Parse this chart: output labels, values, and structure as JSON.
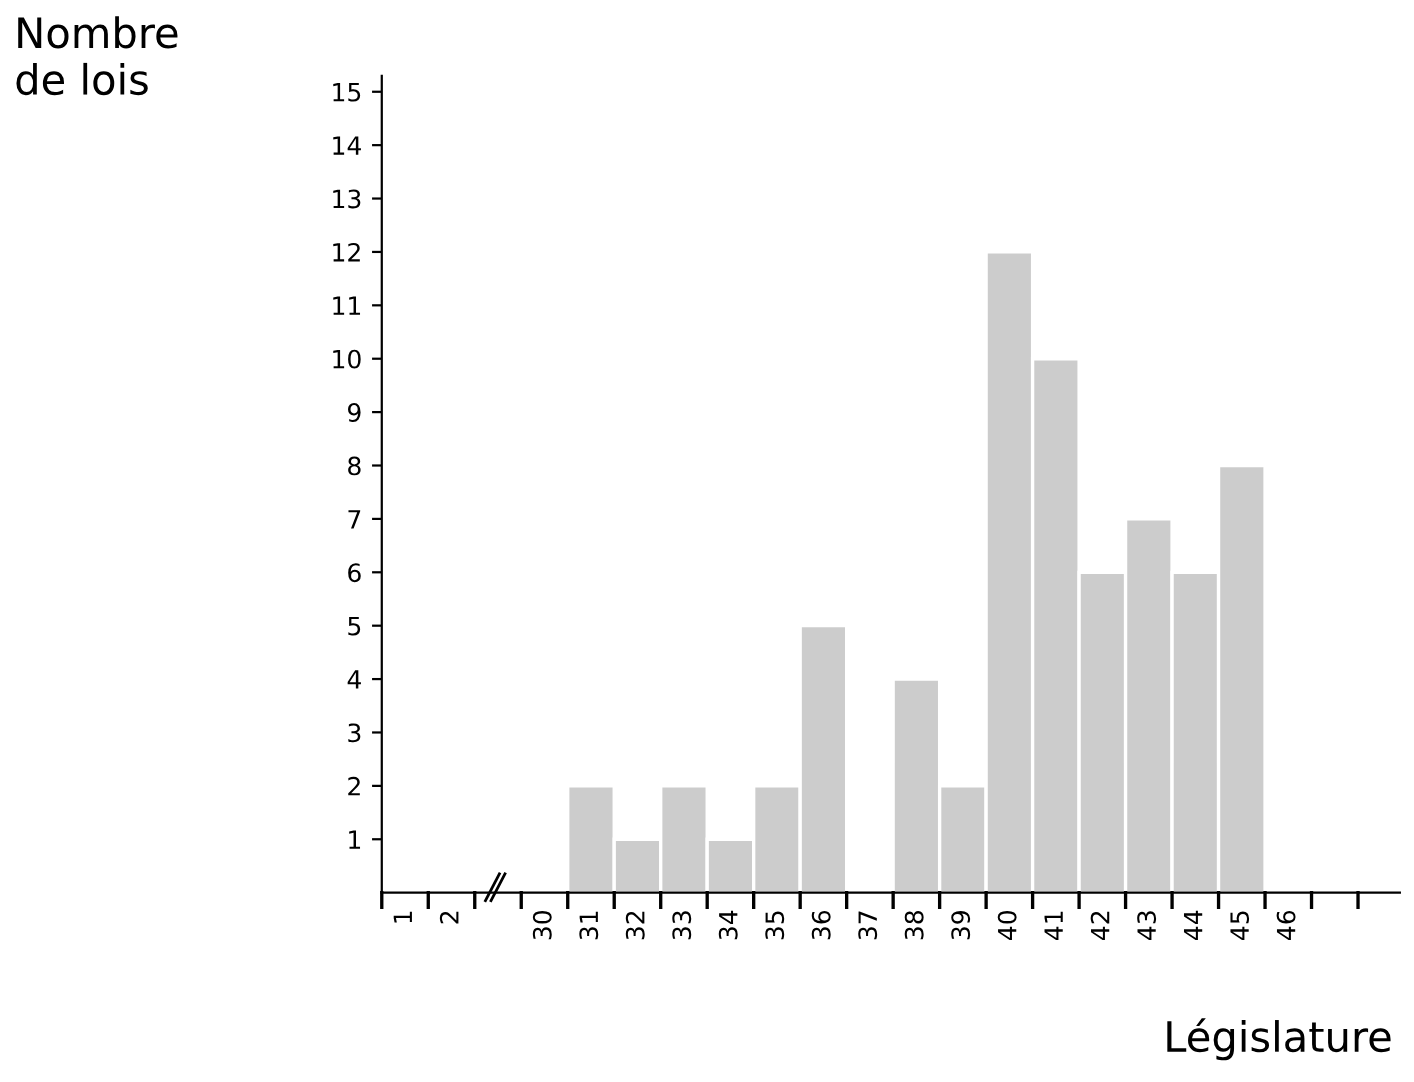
{
  "chart_data": {
    "type": "bar",
    "ylabel": "Nombre\nde lois",
    "xlabel": "Législature",
    "categories": [
      "1",
      "2",
      null,
      "30",
      "31",
      "32",
      "33",
      "34",
      "35",
      "36",
      "37",
      "38",
      "39",
      "40",
      "41",
      "42",
      "43",
      "44",
      "45",
      "46",
      null
    ],
    "values": [
      0,
      0,
      null,
      0,
      2,
      1,
      2,
      1,
      2,
      5,
      0,
      4,
      2,
      12,
      10,
      6,
      7,
      6,
      8,
      0,
      0
    ],
    "color": "#cccccc",
    "ylim": [
      0,
      15.3
    ],
    "yticks": [
      1,
      2,
      3,
      4,
      5,
      6,
      7,
      8,
      9,
      10,
      11,
      12,
      13,
      14,
      15
    ],
    "grid": false
  }
}
